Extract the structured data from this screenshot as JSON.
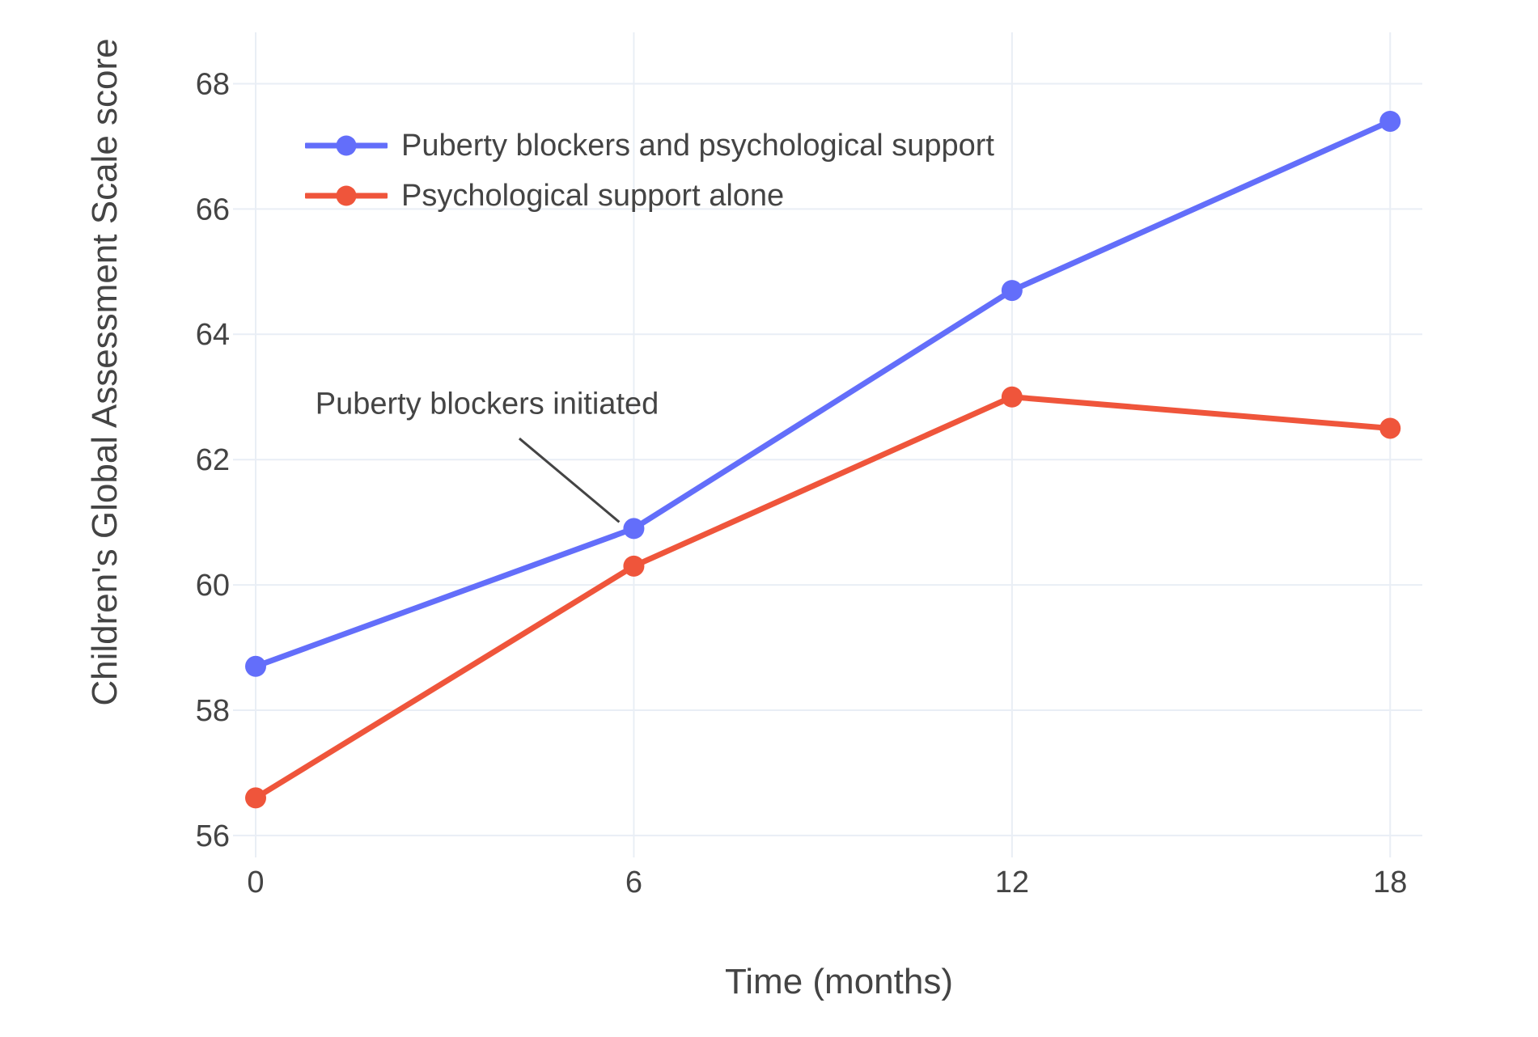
{
  "chart_data": {
    "type": "line",
    "x": [
      0,
      6,
      12,
      18
    ],
    "series": [
      {
        "name": "Puberty blockers and psychological support",
        "slug": "puberty-blockers-and-psychological-support",
        "values": [
          58.7,
          60.9,
          64.7,
          67.4
        ],
        "color": "#636efa"
      },
      {
        "name": "Psychological support alone",
        "slug": "psychological-support-alone",
        "values": [
          56.6,
          60.3,
          63.0,
          62.5
        ],
        "color": "#ef553b"
      }
    ],
    "title": "",
    "xlabel": "Time (months)",
    "ylabel": "Children's Global Assessment Scale score",
    "xticks": [
      0,
      6,
      12,
      18
    ],
    "yticks": [
      56,
      58,
      60,
      62,
      64,
      66,
      68
    ],
    "xlim": [
      0,
      18.51
    ],
    "ylim": [
      55.65,
      68.82
    ],
    "grid": true,
    "legend_position": "inside-top-left",
    "annotation": {
      "text": "Puberty blockers initiated",
      "target_x": 6,
      "target_y": 60.9,
      "label_x": 3.67,
      "label_y": 62.88
    }
  },
  "style_colors": {
    "background": "#ffffff",
    "gridline": "#e9eef5",
    "text": "#444444",
    "annotation_line": "#444444"
  }
}
